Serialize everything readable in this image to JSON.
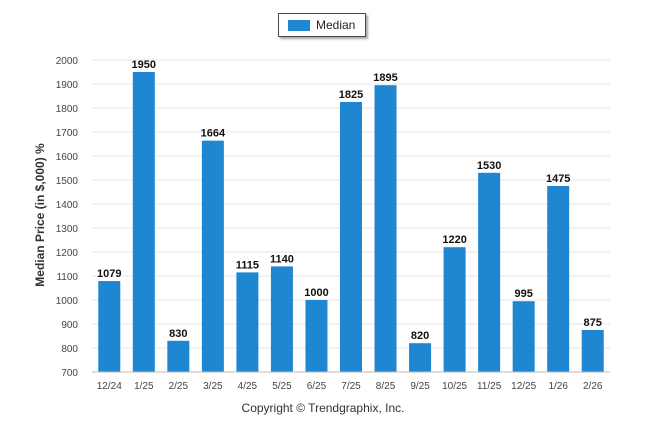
{
  "chart_data": {
    "type": "bar",
    "title": "",
    "xlabel": "",
    "ylabel": "Median Price (in $,000) %",
    "ylim": [
      700,
      2000
    ],
    "yticks": [
      700,
      800,
      900,
      1000,
      1100,
      1200,
      1300,
      1400,
      1500,
      1600,
      1700,
      1800,
      1900,
      2000
    ],
    "grid": true,
    "legend": "top-center",
    "categories": [
      "12/24",
      "1/25",
      "2/25",
      "3/25",
      "4/25",
      "5/25",
      "6/25",
      "7/25",
      "8/25",
      "9/25",
      "10/25",
      "11/25",
      "12/25",
      "1/26",
      "2/26"
    ],
    "series": [
      {
        "name": "Median",
        "color": "#1f86d1",
        "values": [
          1079,
          1950,
          830,
          1664,
          1115,
          1140,
          1000,
          1825,
          1895,
          820,
          1220,
          1530,
          995,
          1475,
          875
        ]
      }
    ]
  },
  "footer": "Copyright © Trendgraphix, Inc."
}
